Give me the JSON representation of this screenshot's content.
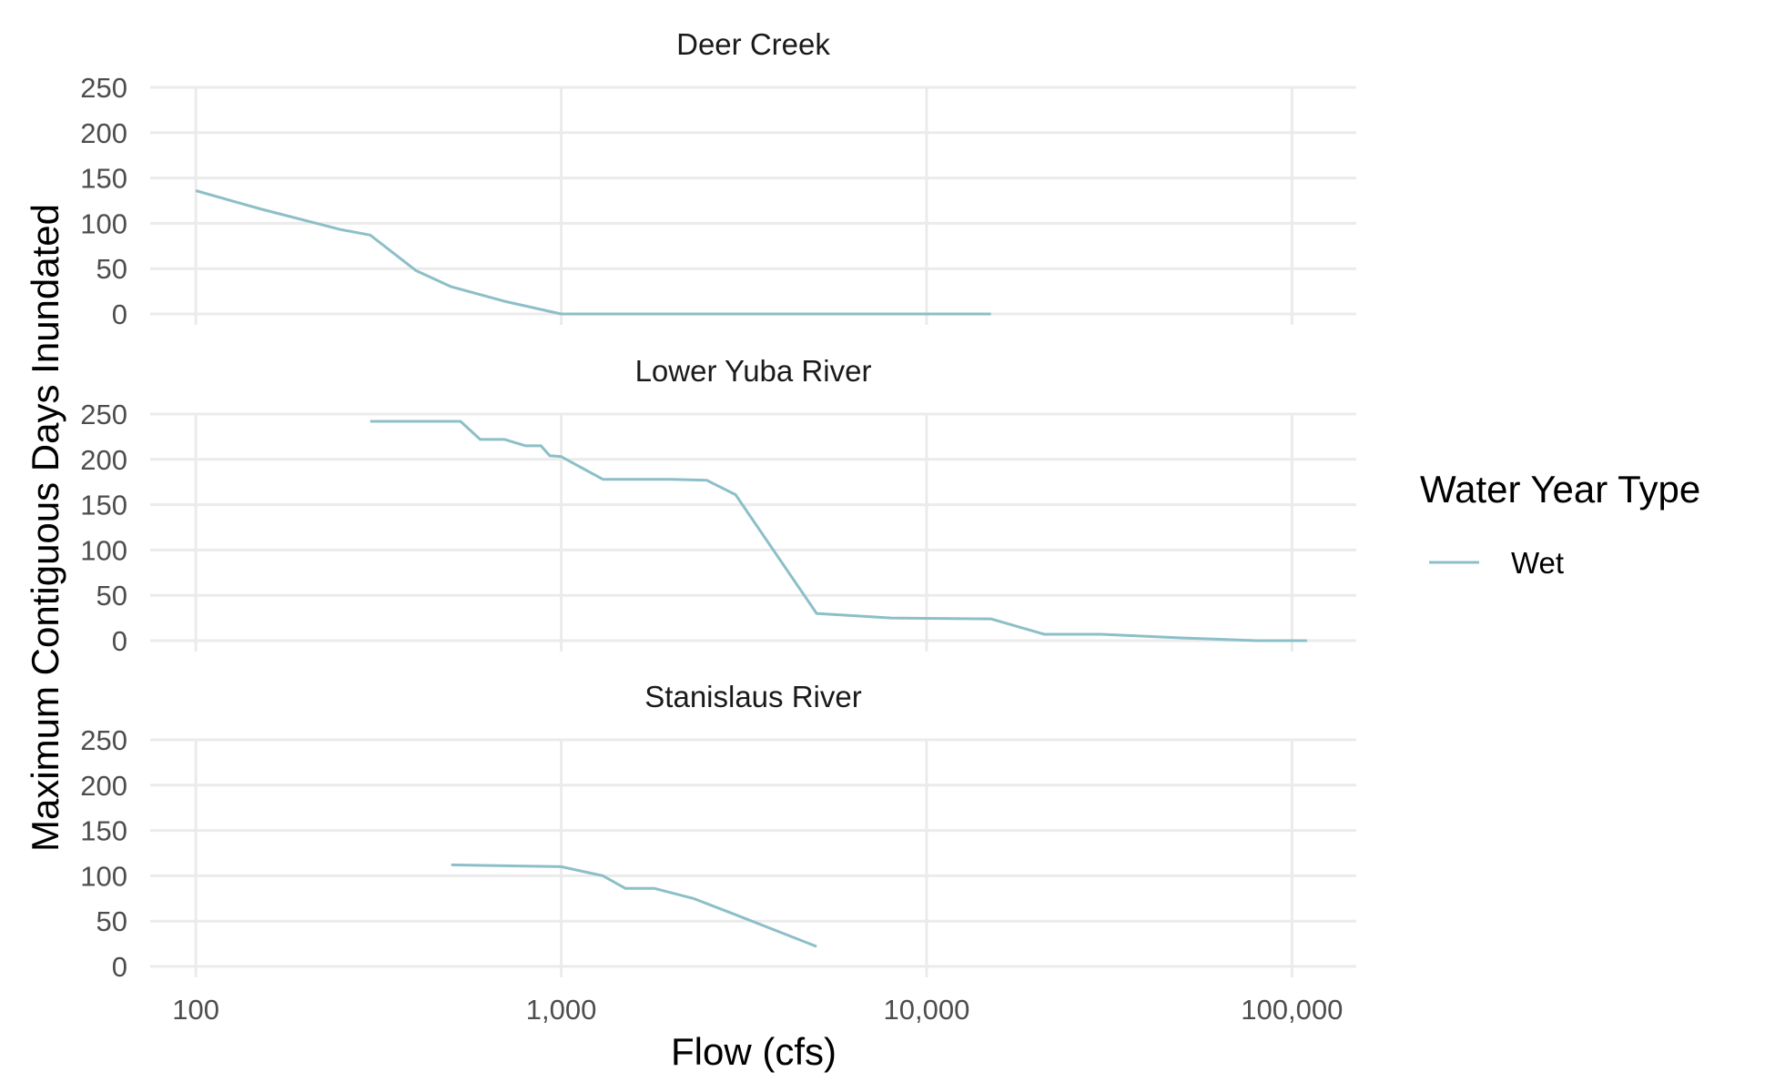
{
  "chart_data": {
    "type": "line",
    "layout": "faceted-vertical",
    "xlabel": "Flow (cfs)",
    "ylabel": "Maximum Contiguous Days Inundated",
    "x_scale": "log10",
    "xlim": [
      75,
      150000
    ],
    "x_ticks": [
      100,
      1000,
      10000,
      100000
    ],
    "x_tick_labels": [
      "100",
      "1,000",
      "10,000",
      "100,000"
    ],
    "ylim": [
      0,
      250
    ],
    "y_ticks": [
      0,
      50,
      100,
      150,
      200,
      250
    ],
    "y_tick_labels": [
      "0",
      "50",
      "100",
      "150",
      "200",
      "250"
    ],
    "grid": true,
    "legend": {
      "title": "Water Year Type",
      "position": "right",
      "entries": [
        {
          "name": "Wet",
          "color": "#8cbfc7"
        }
      ]
    },
    "panels": [
      {
        "title": "Deer Creek",
        "series": [
          {
            "name": "Wet",
            "color": "#8cbfc7",
            "points": [
              [
                100,
                136
              ],
              [
                150,
                116
              ],
              [
                250,
                93
              ],
              [
                300,
                87
              ],
              [
                400,
                48
              ],
              [
                500,
                30
              ],
              [
                700,
                14
              ],
              [
                1000,
                0
              ],
              [
                3000,
                0
              ],
              [
                10000,
                0
              ],
              [
                15000,
                0
              ]
            ]
          }
        ]
      },
      {
        "title": "Lower Yuba River",
        "series": [
          {
            "name": "Wet",
            "color": "#8cbfc7",
            "points": [
              [
                300,
                242
              ],
              [
                530,
                242
              ],
              [
                600,
                222
              ],
              [
                700,
                222
              ],
              [
                800,
                215
              ],
              [
                880,
                215
              ],
              [
                930,
                204
              ],
              [
                1000,
                203
              ],
              [
                1300,
                178
              ],
              [
                2000,
                178
              ],
              [
                2500,
                177
              ],
              [
                3000,
                161
              ],
              [
                5000,
                30
              ],
              [
                8000,
                25
              ],
              [
                15000,
                24
              ],
              [
                21000,
                7
              ],
              [
                30000,
                7
              ],
              [
                50000,
                3
              ],
              [
                80000,
                0
              ],
              [
                110000,
                0
              ]
            ]
          }
        ]
      },
      {
        "title": "Stanislaus River",
        "series": [
          {
            "name": "Wet",
            "color": "#8cbfc7",
            "points": [
              [
                500,
                112
              ],
              [
                700,
                111
              ],
              [
                1000,
                110
              ],
              [
                1300,
                100
              ],
              [
                1500,
                86
              ],
              [
                1800,
                86
              ],
              [
                2300,
                75
              ],
              [
                3000,
                57
              ],
              [
                5000,
                22
              ]
            ]
          }
        ]
      }
    ]
  }
}
